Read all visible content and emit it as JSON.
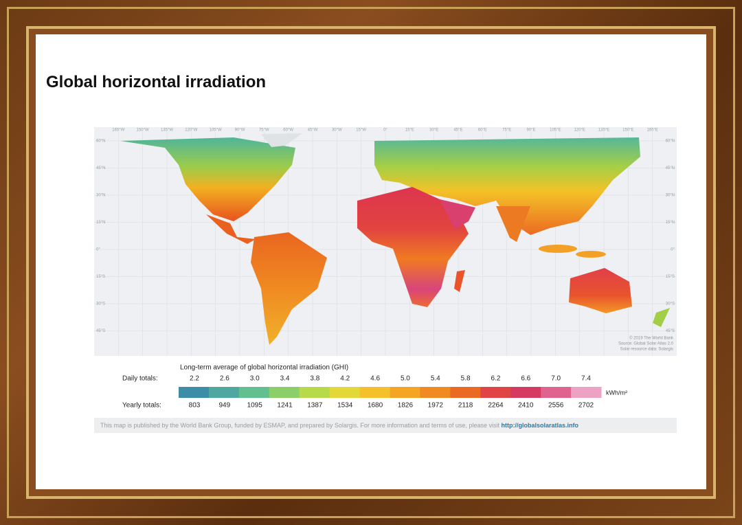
{
  "title": "Global horizontal irradiation",
  "map": {
    "longitude_labels": [
      "165°W",
      "150°W",
      "135°W",
      "120°W",
      "105°W",
      "90°W",
      "75°W",
      "60°W",
      "45°W",
      "30°W",
      "15°W",
      "0°",
      "15°E",
      "30°E",
      "45°E",
      "60°E",
      "75°E",
      "90°E",
      "105°E",
      "120°E",
      "135°E",
      "150°E",
      "165°E"
    ],
    "latitude_labels": [
      "60°N",
      "45°N",
      "30°N",
      "15°N",
      "0°",
      "15°S",
      "30°S",
      "45°S"
    ],
    "credits": [
      "© 2019 The World Bank",
      "Source: Global Solar Atlas 2.0",
      "Solar resource data: Solargis"
    ]
  },
  "legend": {
    "title": "Long-term average of global horizontal irradiation (GHI)",
    "daily_label": "Daily totals:",
    "daily": [
      "2.2",
      "2.6",
      "3.0",
      "3.4",
      "3.8",
      "4.2",
      "4.6",
      "5.0",
      "5.4",
      "5.8",
      "6.2",
      "6.6",
      "7.0",
      "7.4"
    ],
    "unit": "kWh/m²",
    "yearly_label": "Yearly totals:",
    "yearly": [
      803,
      949,
      1095,
      1241,
      1387,
      1534,
      1680,
      1826,
      1972,
      2118,
      2264,
      2410,
      2556,
      2702
    ],
    "colors": [
      "#3b8ea5",
      "#4fa8a0",
      "#62bf8f",
      "#8ccf6a",
      "#b8d94a",
      "#e3d83a",
      "#f4c12c",
      "#f5a524",
      "#f18a22",
      "#ea6a24",
      "#e04445",
      "#d53a62",
      "#e0628f",
      "#eda1c3"
    ]
  },
  "footer": {
    "text": "This map is published by the World Bank Group, funded by ESMAP, and prepared by Solargis. For more information and terms of use, please visit",
    "link": "http://globalsolaratlas.info"
  }
}
